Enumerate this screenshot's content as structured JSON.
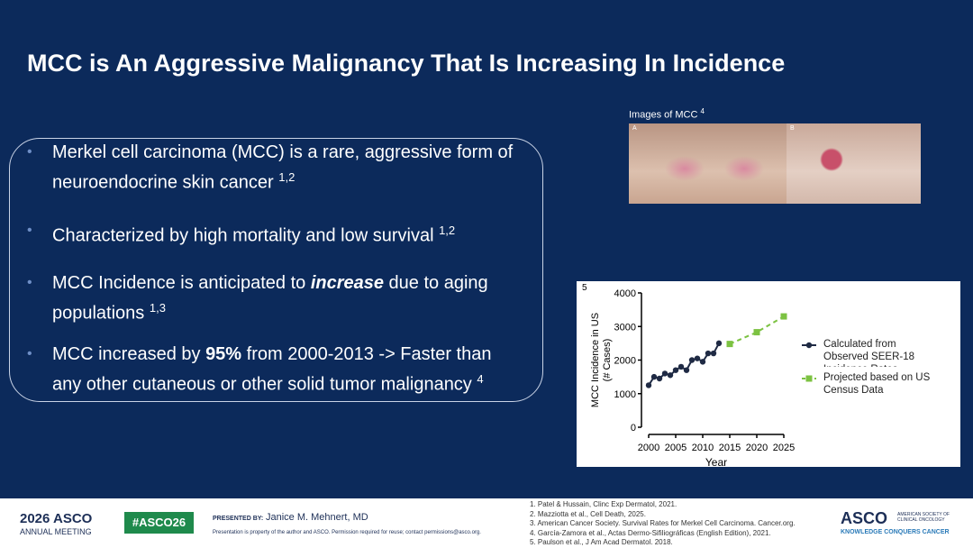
{
  "title": "MCC is An Aggressive Malignancy That Is Increasing In Incidence",
  "bullets": [
    {
      "parts": [
        "Merkel cell carcinoma (MCC) is a rare, aggressive form of neuroendocrine skin cancer"
      ],
      "ref": "1,2"
    },
    {
      "parts": [
        "Characterized by high mortality and low survival"
      ],
      "ref": "1,2"
    },
    {
      "parts": [
        "MCC Incidence is anticipated to ",
        "increase",
        " due to aging populations"
      ],
      "ref": "1,3"
    },
    {
      "parts": [
        "MCC increased by ",
        "95%",
        " from 2000-2013 -> Faster than any other cutaneous or other solid tumor malignancy"
      ],
      "ref": "4"
    }
  ],
  "images": {
    "caption": "Images of MCC",
    "ref": "4",
    "labels": [
      "A",
      "B"
    ]
  },
  "chart_data": {
    "type": "line",
    "ref": "5",
    "xlabel": "Year",
    "ylabel": [
      "MCC Incidence in US",
      "(# Cases)"
    ],
    "xlim": [
      2000,
      2025
    ],
    "ylim": [
      0,
      4000
    ],
    "xticks": [
      2000,
      2005,
      2010,
      2015,
      2020,
      2025
    ],
    "yticks": [
      0,
      1000,
      2000,
      3000,
      4000
    ],
    "series": [
      {
        "name": "Calculated from Observed SEER-18 Incidence Rates",
        "color": "#1f2a44",
        "marker": "circle",
        "dashed": false,
        "x": [
          2000,
          2001,
          2002,
          2003,
          2004,
          2005,
          2006,
          2007,
          2008,
          2009,
          2010,
          2011,
          2012,
          2013
        ],
        "values": [
          1250,
          1500,
          1450,
          1600,
          1550,
          1700,
          1800,
          1700,
          2000,
          2050,
          1950,
          2200,
          2200,
          2500
        ]
      },
      {
        "name": "Projected based on US Census Data",
        "color": "#7cc242",
        "marker": "square",
        "dashed": true,
        "x": [
          2015,
          2020,
          2025
        ],
        "values": [
          2480,
          2830,
          3300
        ]
      }
    ]
  },
  "footer": {
    "meeting": [
      "2026 ASCO",
      "ANNUAL MEETING"
    ],
    "hashtag": "#ASCO26",
    "presented_by": "PRESENTED BY:",
    "presenter": "Janice M. Mehnert, MD",
    "disclaimer": "Presentation is property of the author and ASCO. Permission required for reuse; contact permissions@asco.org.",
    "references": [
      "1. Patel & Hussain, Clinc Exp Dermatol, 2021.",
      "2. Mazziotta et al., Cell Death, 2025.",
      "3. American Cancer Society. Survival Rates for Merkel Cell Carcinoma. Cancer.org.",
      "4. García-Zamora et al., Actas Dermo-Sifiliográficas (English Edition), 2021.",
      "5. Paulson et al., J Am Acad Dermatol. 2018."
    ],
    "logo": [
      "ASCO",
      "AMERICAN SOCIETY OF CLINICAL ONCOLOGY",
      "KNOWLEDGE CONQUERS CANCER"
    ]
  }
}
